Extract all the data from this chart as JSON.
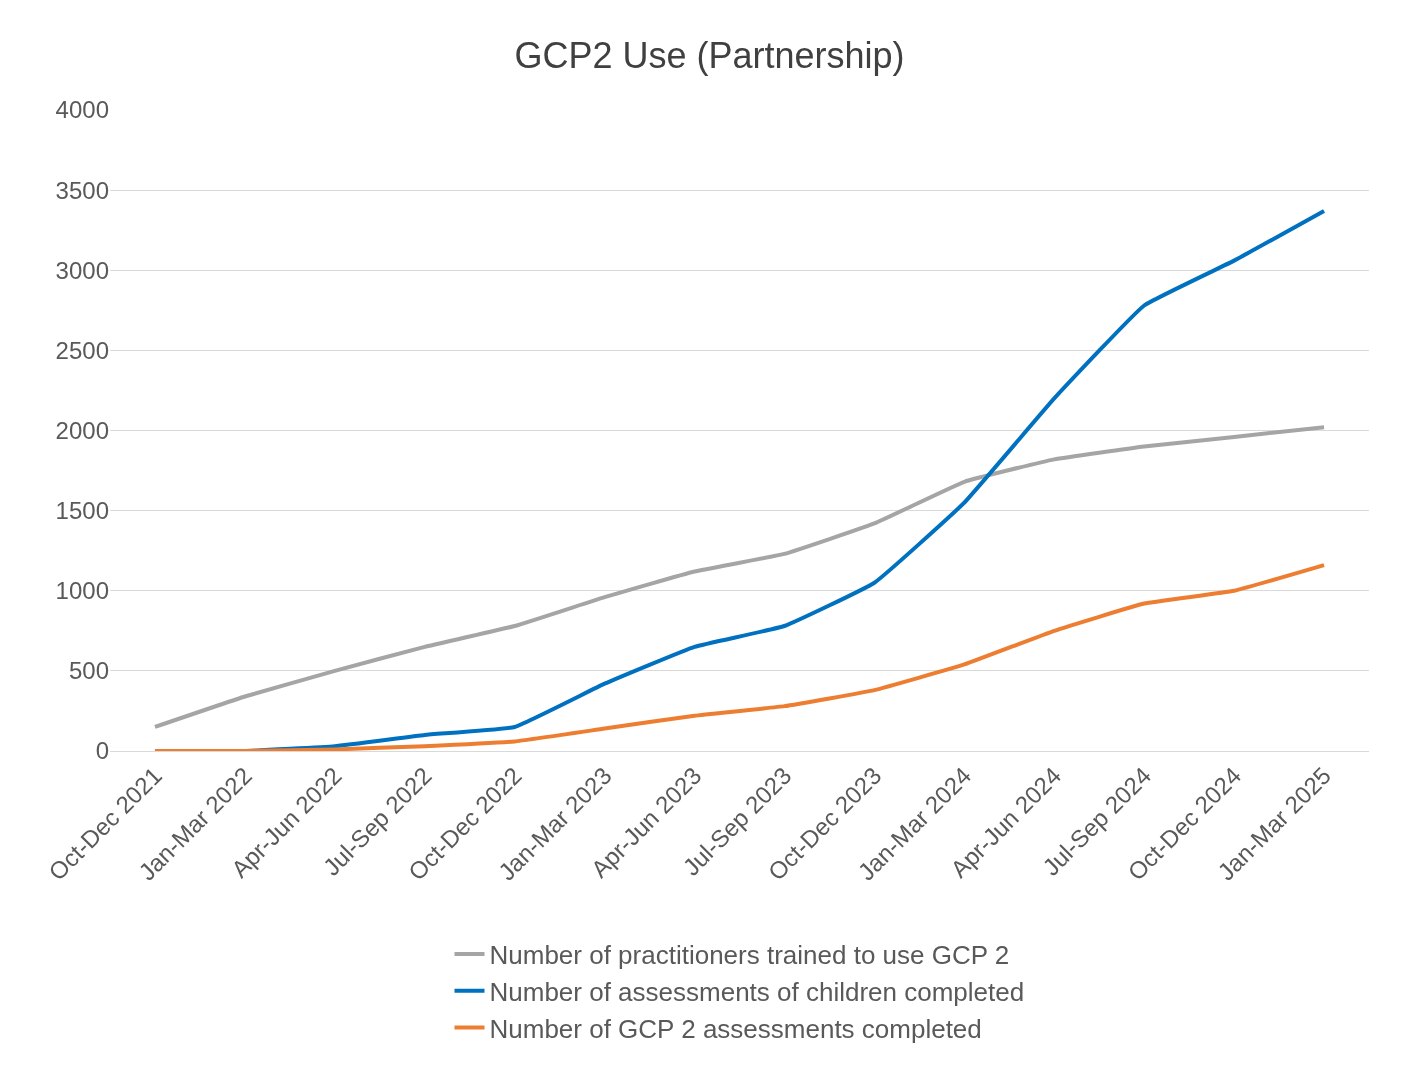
{
  "chart_data": {
    "type": "line",
    "title": "GCP2 Use (Partnership)",
    "categories": [
      "Oct-Dec 2021",
      "Jan-Mar 2022",
      "Apr-Jun 2022",
      "Jul-Sep 2022",
      "Oct-Dec 2022",
      "Jan-Mar 2023",
      "Apr-Jun 2023",
      "Jul-Sep 2023",
      "Oct-Dec 2023",
      "Jan-Mar 2024",
      "Apr-Jun 2024",
      "Jul-Sep 2024",
      "Oct-Dec 2024",
      "Jan-Mar 2025"
    ],
    "series": [
      {
        "name": "Number of practitioners trained to use GCP 2",
        "color": "#a5a5a5",
        "values": [
          150,
          340,
          500,
          650,
          780,
          960,
          1120,
          1230,
          1420,
          1680,
          1820,
          1900,
          1960,
          2020
        ]
      },
      {
        "name": "Number of assessments of children completed",
        "color": "#0070c0",
        "values": [
          0,
          0,
          30,
          100,
          150,
          420,
          650,
          780,
          1050,
          1550,
          2200,
          2780,
          3060,
          3370
        ]
      },
      {
        "name": "Number of GCP 2 assessments completed",
        "color": "#ed7d31",
        "values": [
          0,
          0,
          10,
          30,
          60,
          140,
          220,
          280,
          380,
          540,
          750,
          920,
          1000,
          1160
        ]
      }
    ],
    "ylim": [
      0,
      4000
    ],
    "yticks": [
      0,
      500,
      1000,
      1500,
      2000,
      2500,
      3000,
      3500,
      4000
    ],
    "grid": "y",
    "legend": "bottom",
    "marker": "none",
    "line_style": "solid"
  }
}
